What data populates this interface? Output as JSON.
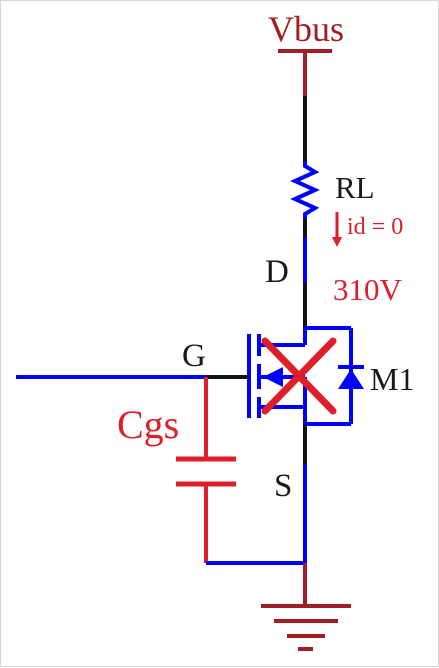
{
  "labels": {
    "supply": "Vbus",
    "load_resistor": "RL",
    "drain_current": "id = 0",
    "drain_pin": "D",
    "drain_voltage": "310V",
    "gate_pin": "G",
    "transistor": "M1",
    "gate_source_cap": "Cgs",
    "source_pin": "S"
  },
  "colors": {
    "wire_blue": "#0000ff",
    "wire_red": "#dd1f2a",
    "wire_black": "#111111",
    "ground": "#a01e24",
    "label_dark": "#1a1a1a"
  }
}
